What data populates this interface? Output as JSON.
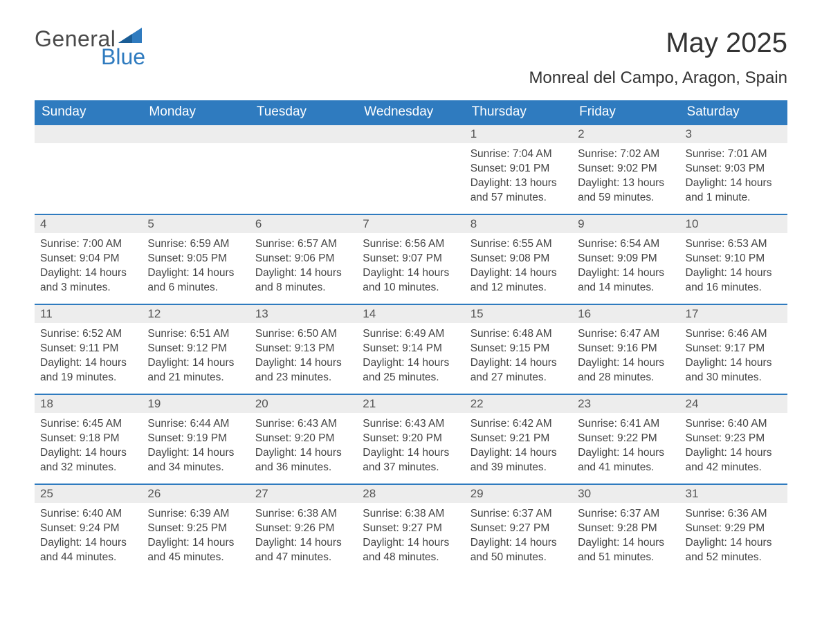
{
  "brand": {
    "general": "General",
    "blue": "Blue"
  },
  "title": "May 2025",
  "location": "Monreal del Campo, Aragon, Spain",
  "colors": {
    "header_bg": "#2f7bbf",
    "header_text": "#ffffff",
    "daynum_bg": "#ededed",
    "row_divider": "#2f7bbf",
    "body_text": "#444444",
    "title_text": "#333333",
    "logo_gray": "#4a4a4a",
    "logo_blue": "#2f7bbf",
    "page_bg": "#ffffff"
  },
  "days_of_week": [
    "Sunday",
    "Monday",
    "Tuesday",
    "Wednesday",
    "Thursday",
    "Friday",
    "Saturday"
  ],
  "weeks": [
    [
      null,
      null,
      null,
      null,
      {
        "n": "1",
        "sunrise": "7:04 AM",
        "sunset": "9:01 PM",
        "daylight": "13 hours and 57 minutes."
      },
      {
        "n": "2",
        "sunrise": "7:02 AM",
        "sunset": "9:02 PM",
        "daylight": "13 hours and 59 minutes."
      },
      {
        "n": "3",
        "sunrise": "7:01 AM",
        "sunset": "9:03 PM",
        "daylight": "14 hours and 1 minute."
      }
    ],
    [
      {
        "n": "4",
        "sunrise": "7:00 AM",
        "sunset": "9:04 PM",
        "daylight": "14 hours and 3 minutes."
      },
      {
        "n": "5",
        "sunrise": "6:59 AM",
        "sunset": "9:05 PM",
        "daylight": "14 hours and 6 minutes."
      },
      {
        "n": "6",
        "sunrise": "6:57 AM",
        "sunset": "9:06 PM",
        "daylight": "14 hours and 8 minutes."
      },
      {
        "n": "7",
        "sunrise": "6:56 AM",
        "sunset": "9:07 PM",
        "daylight": "14 hours and 10 minutes."
      },
      {
        "n": "8",
        "sunrise": "6:55 AM",
        "sunset": "9:08 PM",
        "daylight": "14 hours and 12 minutes."
      },
      {
        "n": "9",
        "sunrise": "6:54 AM",
        "sunset": "9:09 PM",
        "daylight": "14 hours and 14 minutes."
      },
      {
        "n": "10",
        "sunrise": "6:53 AM",
        "sunset": "9:10 PM",
        "daylight": "14 hours and 16 minutes."
      }
    ],
    [
      {
        "n": "11",
        "sunrise": "6:52 AM",
        "sunset": "9:11 PM",
        "daylight": "14 hours and 19 minutes."
      },
      {
        "n": "12",
        "sunrise": "6:51 AM",
        "sunset": "9:12 PM",
        "daylight": "14 hours and 21 minutes."
      },
      {
        "n": "13",
        "sunrise": "6:50 AM",
        "sunset": "9:13 PM",
        "daylight": "14 hours and 23 minutes."
      },
      {
        "n": "14",
        "sunrise": "6:49 AM",
        "sunset": "9:14 PM",
        "daylight": "14 hours and 25 minutes."
      },
      {
        "n": "15",
        "sunrise": "6:48 AM",
        "sunset": "9:15 PM",
        "daylight": "14 hours and 27 minutes."
      },
      {
        "n": "16",
        "sunrise": "6:47 AM",
        "sunset": "9:16 PM",
        "daylight": "14 hours and 28 minutes."
      },
      {
        "n": "17",
        "sunrise": "6:46 AM",
        "sunset": "9:17 PM",
        "daylight": "14 hours and 30 minutes."
      }
    ],
    [
      {
        "n": "18",
        "sunrise": "6:45 AM",
        "sunset": "9:18 PM",
        "daylight": "14 hours and 32 minutes."
      },
      {
        "n": "19",
        "sunrise": "6:44 AM",
        "sunset": "9:19 PM",
        "daylight": "14 hours and 34 minutes."
      },
      {
        "n": "20",
        "sunrise": "6:43 AM",
        "sunset": "9:20 PM",
        "daylight": "14 hours and 36 minutes."
      },
      {
        "n": "21",
        "sunrise": "6:43 AM",
        "sunset": "9:20 PM",
        "daylight": "14 hours and 37 minutes."
      },
      {
        "n": "22",
        "sunrise": "6:42 AM",
        "sunset": "9:21 PM",
        "daylight": "14 hours and 39 minutes."
      },
      {
        "n": "23",
        "sunrise": "6:41 AM",
        "sunset": "9:22 PM",
        "daylight": "14 hours and 41 minutes."
      },
      {
        "n": "24",
        "sunrise": "6:40 AM",
        "sunset": "9:23 PM",
        "daylight": "14 hours and 42 minutes."
      }
    ],
    [
      {
        "n": "25",
        "sunrise": "6:40 AM",
        "sunset": "9:24 PM",
        "daylight": "14 hours and 44 minutes."
      },
      {
        "n": "26",
        "sunrise": "6:39 AM",
        "sunset": "9:25 PM",
        "daylight": "14 hours and 45 minutes."
      },
      {
        "n": "27",
        "sunrise": "6:38 AM",
        "sunset": "9:26 PM",
        "daylight": "14 hours and 47 minutes."
      },
      {
        "n": "28",
        "sunrise": "6:38 AM",
        "sunset": "9:27 PM",
        "daylight": "14 hours and 48 minutes."
      },
      {
        "n": "29",
        "sunrise": "6:37 AM",
        "sunset": "9:27 PM",
        "daylight": "14 hours and 50 minutes."
      },
      {
        "n": "30",
        "sunrise": "6:37 AM",
        "sunset": "9:28 PM",
        "daylight": "14 hours and 51 minutes."
      },
      {
        "n": "31",
        "sunrise": "6:36 AM",
        "sunset": "9:29 PM",
        "daylight": "14 hours and 52 minutes."
      }
    ]
  ],
  "labels": {
    "sunrise": "Sunrise: ",
    "sunset": "Sunset: ",
    "daylight": "Daylight: "
  }
}
